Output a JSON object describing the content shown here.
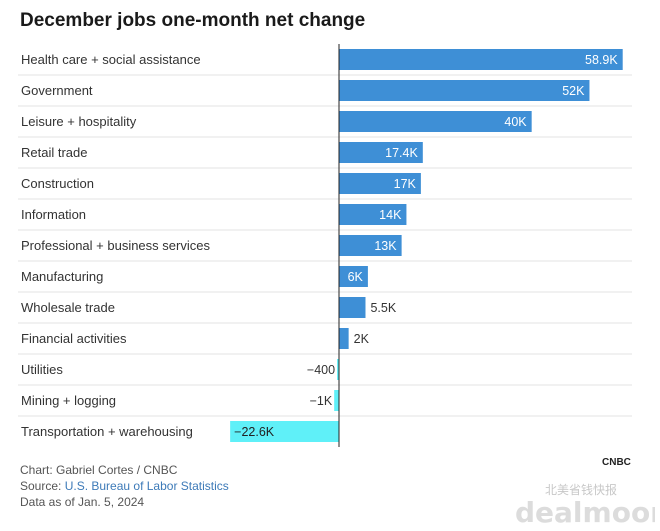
{
  "header": {
    "title": "December jobs one-month net change"
  },
  "chart_data": {
    "type": "bar",
    "orientation": "horizontal",
    "title": "December jobs one-month net change",
    "categories": [
      "Health care + social assistance",
      "Government",
      "Leisure + hospitality",
      "Retail trade",
      "Construction",
      "Information",
      "Professional + business services",
      "Manufacturing",
      "Wholesale trade",
      "Financial activities",
      "Utilities",
      "Mining + logging",
      "Transportation + warehousing"
    ],
    "values": [
      58900,
      52000,
      40000,
      17400,
      17000,
      14000,
      13000,
      6000,
      5500,
      2000,
      -400,
      -1000,
      -22600
    ],
    "value_labels": [
      "58.9K",
      "52K",
      "40K",
      "17.4K",
      "17K",
      "14K",
      "13K",
      "6K",
      "5.5K",
      "2K",
      "−400",
      "−1K",
      "−22.6K"
    ],
    "xlim": [
      -40000,
      60000
    ],
    "grid": false,
    "colors": {
      "positive": "#3e8fd6",
      "negative": "#5ff0f8",
      "zero_line": "#222222",
      "separator": "#e3e3e3"
    }
  },
  "footer": {
    "credit": "Chart: Gabriel Cortes / CNBC",
    "source_prefix": "Source: ",
    "source_link": "U.S. Bureau of Labor Statistics",
    "data_note": "Data as of Jan. 5, 2024"
  },
  "watermark": {
    "logo_text": "CNBC",
    "site_text": "dealmoon",
    "site_text_cn": "北美省钱快报"
  }
}
